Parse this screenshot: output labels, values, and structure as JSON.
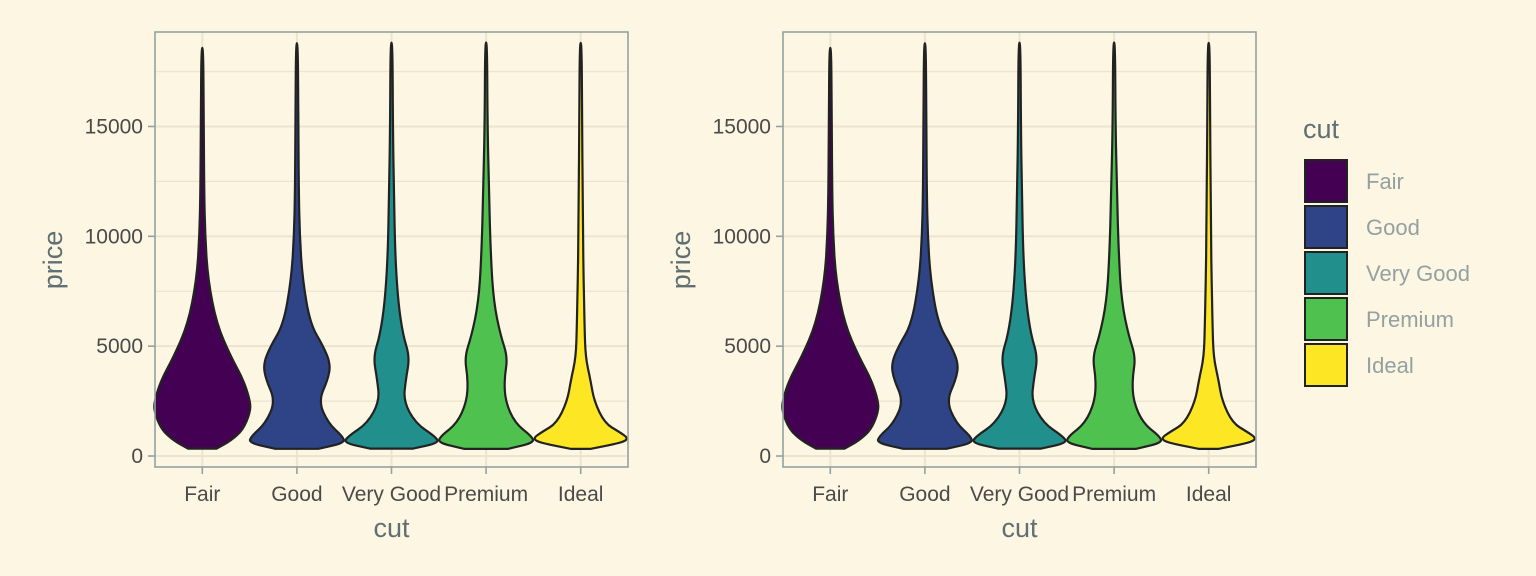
{
  "chart_data": [
    {
      "type": "violin",
      "xlabel": "cut",
      "ylabel": "price",
      "categories": [
        "Fair",
        "Good",
        "Very Good",
        "Premium",
        "Ideal"
      ],
      "ylim": [
        -500,
        19300
      ],
      "y_ticks": [
        0,
        5000,
        10000,
        15000
      ],
      "grid": true,
      "legend": null,
      "series": [
        {
          "name": "Fair",
          "min": 337,
          "max": 18574,
          "density": [
            [
              337,
              0.3
            ],
            [
              700,
              0.6
            ],
            [
              1200,
              0.85
            ],
            [
              2000,
              1.0
            ],
            [
              2500,
              1.0
            ],
            [
              3500,
              0.85
            ],
            [
              4500,
              0.6
            ],
            [
              6000,
              0.3
            ],
            [
              8000,
              0.12
            ],
            [
              10000,
              0.06
            ],
            [
              12000,
              0.04
            ],
            [
              15000,
              0.03
            ],
            [
              18574,
              0.02
            ]
          ]
        },
        {
          "name": "Good",
          "min": 327,
          "max": 18788,
          "density": [
            [
              327,
              0.45
            ],
            [
              600,
              1.0
            ],
            [
              900,
              0.95
            ],
            [
              1500,
              0.65
            ],
            [
              2500,
              0.45
            ],
            [
              3500,
              0.65
            ],
            [
              4200,
              0.7
            ],
            [
              5000,
              0.55
            ],
            [
              6000,
              0.28
            ],
            [
              8000,
              0.12
            ],
            [
              10000,
              0.06
            ],
            [
              12000,
              0.04
            ],
            [
              15000,
              0.03
            ],
            [
              18788,
              0.02
            ]
          ]
        },
        {
          "name": "Very Good",
          "min": 336,
          "max": 18818,
          "density": [
            [
              336,
              0.45
            ],
            [
              600,
              1.0
            ],
            [
              900,
              0.9
            ],
            [
              1500,
              0.5
            ],
            [
              2500,
              0.25
            ],
            [
              3500,
              0.3
            ],
            [
              4500,
              0.38
            ],
            [
              5500,
              0.24
            ],
            [
              7000,
              0.14
            ],
            [
              9000,
              0.08
            ],
            [
              12000,
              0.05
            ],
            [
              15000,
              0.03
            ],
            [
              18818,
              0.02
            ]
          ]
        },
        {
          "name": "Premium",
          "min": 326,
          "max": 18823,
          "density": [
            [
              326,
              0.45
            ],
            [
              600,
              1.0
            ],
            [
              900,
              0.95
            ],
            [
              1500,
              0.6
            ],
            [
              2500,
              0.4
            ],
            [
              3500,
              0.38
            ],
            [
              4500,
              0.45
            ],
            [
              5500,
              0.3
            ],
            [
              7000,
              0.16
            ],
            [
              9000,
              0.1
            ],
            [
              12000,
              0.06
            ],
            [
              15000,
              0.03
            ],
            [
              18823,
              0.02
            ]
          ]
        },
        {
          "name": "Ideal",
          "min": 326,
          "max": 18806,
          "density": [
            [
              326,
              0.2
            ],
            [
              600,
              0.85
            ],
            [
              800,
              1.0
            ],
            [
              1100,
              0.8
            ],
            [
              1500,
              0.5
            ],
            [
              2500,
              0.28
            ],
            [
              3500,
              0.2
            ],
            [
              4500,
              0.1
            ],
            [
              6000,
              0.08
            ],
            [
              8000,
              0.06
            ],
            [
              10000,
              0.05
            ],
            [
              12000,
              0.04
            ],
            [
              15000,
              0.03
            ],
            [
              18806,
              0.02
            ]
          ]
        }
      ]
    },
    {
      "type": "violin",
      "xlabel": "cut",
      "ylabel": "price",
      "categories": [
        "Fair",
        "Good",
        "Very Good",
        "Premium",
        "Ideal"
      ],
      "ylim": [
        -500,
        19300
      ],
      "y_ticks": [
        0,
        5000,
        10000,
        15000
      ],
      "grid": true,
      "legend": "right",
      "legend_title": "cut",
      "series": [
        {
          "name": "Fair",
          "min": 337,
          "max": 18574,
          "density": [
            [
              337,
              0.3
            ],
            [
              700,
              0.6
            ],
            [
              1200,
              0.85
            ],
            [
              2000,
              1.0
            ],
            [
              2500,
              1.0
            ],
            [
              3500,
              0.85
            ],
            [
              4500,
              0.6
            ],
            [
              6000,
              0.3
            ],
            [
              8000,
              0.12
            ],
            [
              10000,
              0.06
            ],
            [
              12000,
              0.04
            ],
            [
              15000,
              0.03
            ],
            [
              18574,
              0.02
            ]
          ]
        },
        {
          "name": "Good",
          "min": 327,
          "max": 18788,
          "density": [
            [
              327,
              0.45
            ],
            [
              600,
              1.0
            ],
            [
              900,
              0.95
            ],
            [
              1500,
              0.65
            ],
            [
              2500,
              0.45
            ],
            [
              3500,
              0.65
            ],
            [
              4200,
              0.7
            ],
            [
              5000,
              0.55
            ],
            [
              6000,
              0.28
            ],
            [
              8000,
              0.12
            ],
            [
              10000,
              0.06
            ],
            [
              12000,
              0.04
            ],
            [
              15000,
              0.03
            ],
            [
              18788,
              0.02
            ]
          ]
        },
        {
          "name": "Very Good",
          "min": 336,
          "max": 18818,
          "density": [
            [
              336,
              0.45
            ],
            [
              600,
              1.0
            ],
            [
              900,
              0.9
            ],
            [
              1500,
              0.5
            ],
            [
              2500,
              0.25
            ],
            [
              3500,
              0.3
            ],
            [
              4500,
              0.38
            ],
            [
              5500,
              0.24
            ],
            [
              7000,
              0.14
            ],
            [
              9000,
              0.08
            ],
            [
              12000,
              0.05
            ],
            [
              15000,
              0.03
            ],
            [
              18818,
              0.02
            ]
          ]
        },
        {
          "name": "Premium",
          "min": 326,
          "max": 18823,
          "density": [
            [
              326,
              0.45
            ],
            [
              600,
              1.0
            ],
            [
              900,
              0.95
            ],
            [
              1500,
              0.6
            ],
            [
              2500,
              0.4
            ],
            [
              3500,
              0.38
            ],
            [
              4500,
              0.45
            ],
            [
              5500,
              0.3
            ],
            [
              7000,
              0.16
            ],
            [
              9000,
              0.1
            ],
            [
              12000,
              0.06
            ],
            [
              15000,
              0.03
            ],
            [
              18823,
              0.02
            ]
          ]
        },
        {
          "name": "Ideal",
          "min": 326,
          "max": 18806,
          "density": [
            [
              326,
              0.2
            ],
            [
              600,
              0.85
            ],
            [
              800,
              1.0
            ],
            [
              1100,
              0.8
            ],
            [
              1500,
              0.5
            ],
            [
              2500,
              0.28
            ],
            [
              3500,
              0.2
            ],
            [
              4500,
              0.1
            ],
            [
              6000,
              0.08
            ],
            [
              8000,
              0.06
            ],
            [
              10000,
              0.05
            ],
            [
              12000,
              0.04
            ],
            [
              15000,
              0.03
            ],
            [
              18806,
              0.02
            ]
          ]
        }
      ]
    }
  ],
  "colors": {
    "background": "#fdf6e3",
    "grid": "#ede4cf",
    "axis_line": "#93a1a1",
    "outline": "#222222",
    "series": [
      "#440154",
      "#2f4486",
      "#21908c",
      "#4fc14f",
      "#fde725"
    ]
  }
}
